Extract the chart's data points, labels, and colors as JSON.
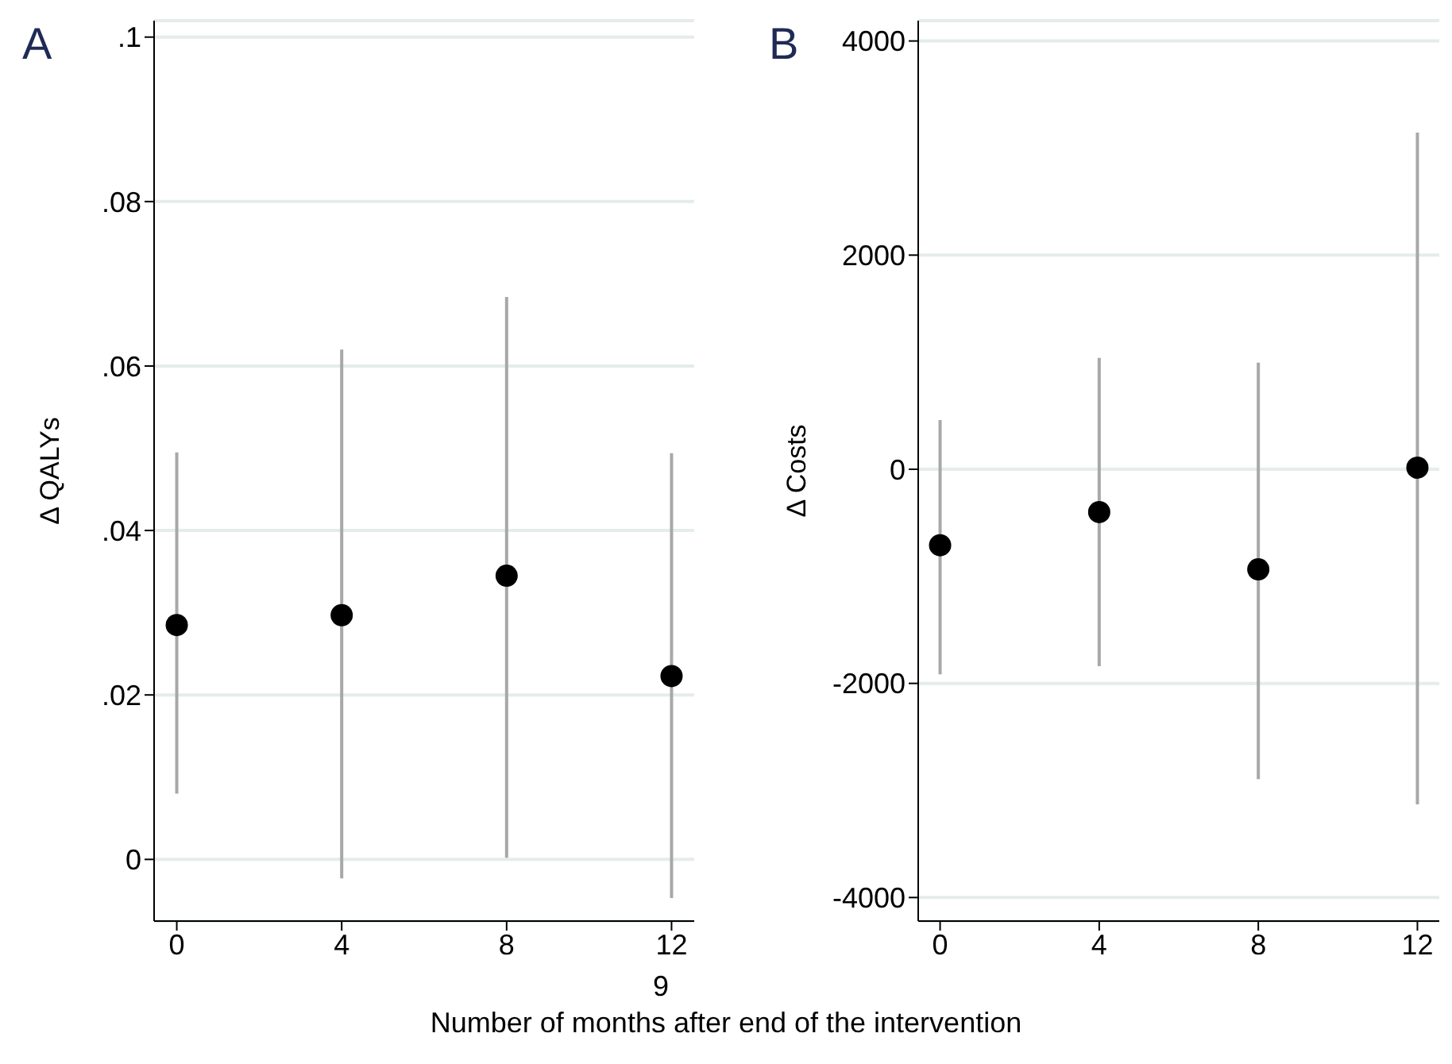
{
  "chart_data": [
    {
      "type": "scatter",
      "xlabel": "Number of months after end of the intervention",
      "ylabel": "Δ QALYs",
      "annotations": [
        "A",
        "9"
      ],
      "x": [
        0,
        4,
        8,
        12
      ],
      "values": [
        0.0285,
        0.0297,
        0.0345,
        0.0223
      ],
      "errors": [
        [
          0.008,
          0.0495
        ],
        [
          -0.0023,
          0.062
        ],
        [
          0.0002,
          0.0684
        ],
        [
          -0.0047,
          0.0494
        ]
      ],
      "color": "#000000",
      "marker": "circle",
      "grid": "y",
      "xlim": [
        -0.55,
        12.55
      ],
      "xticks": [
        0,
        4,
        8,
        12
      ],
      "ylim": [
        -0.0075,
        0.102
      ],
      "yticks": [
        {
          "value": 0,
          "label": "0"
        },
        {
          "value": 0.02,
          "label": ".02"
        },
        {
          "value": 0.04,
          "label": ".04"
        },
        {
          "value": 0.06,
          "label": ".06"
        },
        {
          "value": 0.08,
          "label": ".08"
        },
        {
          "value": 0.1,
          "label": ".1"
        }
      ]
    },
    {
      "type": "scatter",
      "ylabel": "Δ Costs",
      "annotations": [
        "B"
      ],
      "x": [
        0,
        4,
        8,
        12
      ],
      "values": [
        -710,
        -400,
        -935,
        15
      ],
      "errors": [
        [
          -1915,
          460
        ],
        [
          -1840,
          1040
        ],
        [
          -2895,
          995
        ],
        [
          -3130,
          3145
        ]
      ],
      "color": "#000000",
      "marker": "circle",
      "grid": "y",
      "xlim": [
        -0.55,
        12.55
      ],
      "xticks": [
        0,
        4,
        8,
        12
      ],
      "ylim": [
        -4220,
        4190
      ],
      "yticks": [
        -4000,
        -2000,
        0,
        2000,
        4000
      ]
    }
  ]
}
